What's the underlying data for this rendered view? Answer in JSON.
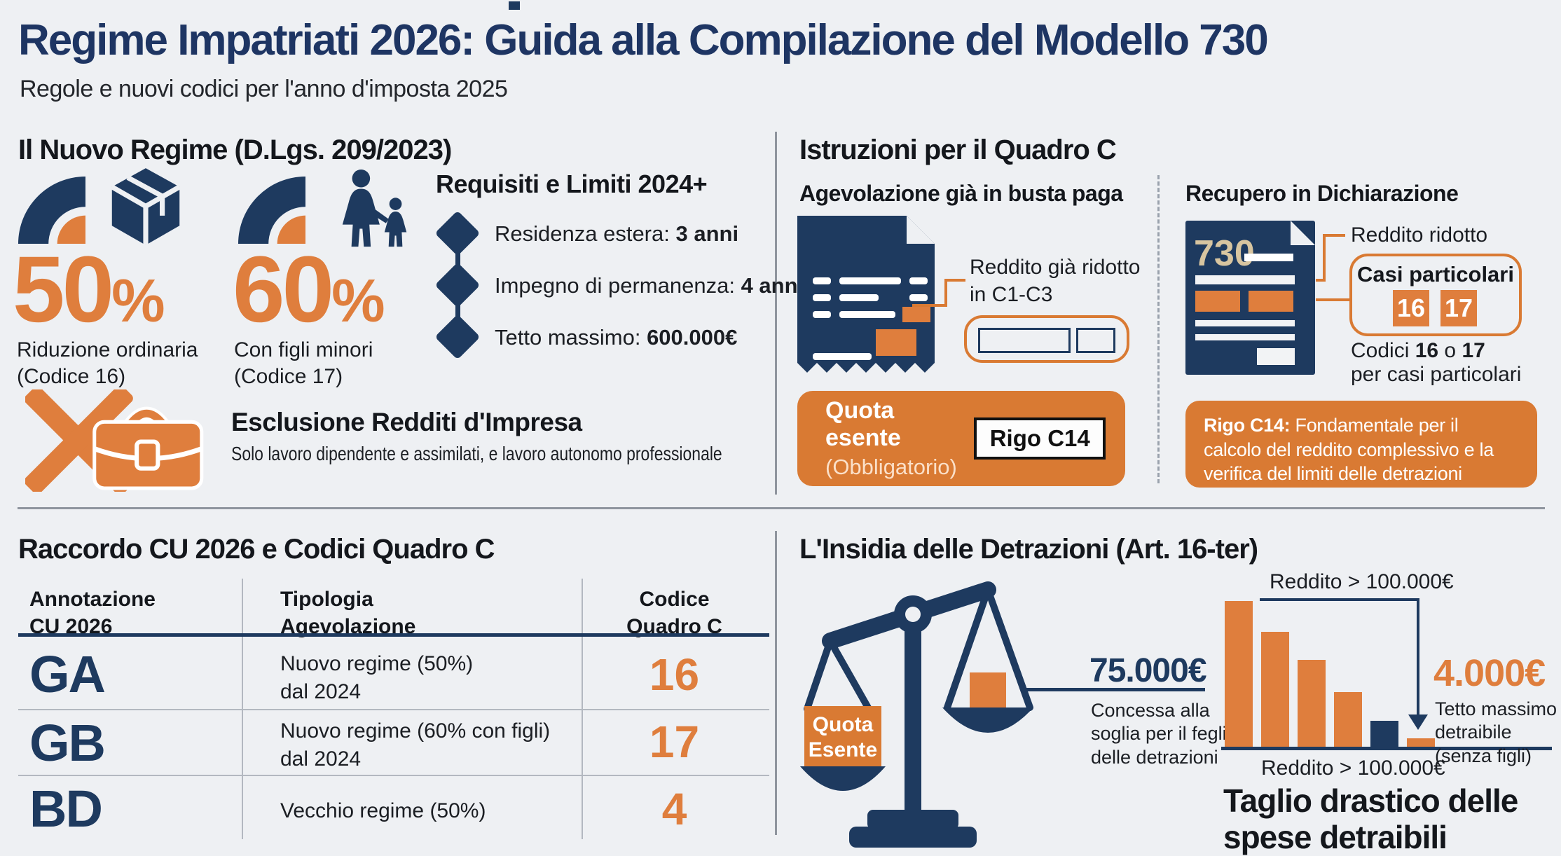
{
  "page": {
    "title": "Regime Impatriati 2026: Guida alla Compilazione del Modello 730",
    "subtitle": "Regole e nuovi codici per l'anno d'imposta 2025"
  },
  "colors": {
    "navy": "#1e3a5f",
    "orange": "#df7e3d",
    "background": "#eef0f3"
  },
  "nuovo_regime": {
    "title": "Il Nuovo Regime (D.Lgs. 209/2023)",
    "stat1": {
      "num": "50",
      "pct": "%",
      "label1": "Riduzione ordinaria",
      "label2": "(Codice 16)"
    },
    "stat2": {
      "num": "60",
      "pct": "%",
      "label1": "Con figli minori",
      "label2": "(Codice 17)"
    },
    "requisiti": {
      "title": "Requisiti e Limiti 2024+",
      "items": [
        {
          "label": "Residenza estera: ",
          "value": "3 anni"
        },
        {
          "label": "Impegno di permanenza: ",
          "value": "4 anni"
        },
        {
          "label": "Tetto massimo: ",
          "value": "600.000€"
        }
      ]
    },
    "esclusione": {
      "title": "Esclusione Redditi d'Impresa",
      "subtitle": "Solo lavoro dipendente e assimilati, e lavoro autonomo professionale"
    }
  },
  "quadro_c": {
    "title": "Istruzioni per il Quadro C",
    "busta": {
      "heading": "Agevolazione già in busta paga",
      "callout1": "Reddito già ridotto",
      "callout2": "in C1-C3",
      "quota_title": "Quota esente",
      "quota_sub": "(Obbligatorio)",
      "quota_tag": "Rigo C14"
    },
    "recupero": {
      "heading": "Recupero in Dichiarazione",
      "doc_label": "730",
      "callout": "Reddito ridotto",
      "casi_title": "Casi particolari",
      "code1": "16",
      "code2": "17",
      "caption_pre": "Codici ",
      "caption_b1": "16",
      "caption_mid": " o ",
      "caption_b2": "17",
      "caption_line2": "per casi particolari",
      "rigo_bold": "Rigo C14:",
      "rigo_text": " Fondamentale per il calcolo del reddito complessivo e la verifica del limiti delle detrazioni"
    }
  },
  "raccordo": {
    "title": "Raccordo CU 2026 e Codici Quadro C",
    "table": {
      "col1_h1": "Annotazione",
      "col1_h2": "CU 2026",
      "col2_h1": "Tipologia",
      "col2_h2": "Agevolazione",
      "col3_h1": "Codice",
      "col3_h2": "Quadro C",
      "rows": [
        {
          "ann": "GA",
          "tip1": "Nuovo regime (50%)",
          "tip2": "dal 2024",
          "code": "16"
        },
        {
          "ann": "GB",
          "tip1": "Nuovo regime (60% con figli)",
          "tip2": "dal 2024",
          "code": "17"
        },
        {
          "ann": "BD",
          "tip1": "Vecchio regime (50%)",
          "tip2": "",
          "code": "4"
        }
      ]
    }
  },
  "detrazioni": {
    "title": "L'Insidia delle Detrazioni (Art. 16-ter)",
    "scale": {
      "pan_label1": "Quota",
      "pan_label2": "Esente",
      "threshold": "75.000€",
      "caption1": "Concessa alla",
      "caption2": "soglia per il feglio",
      "caption3": "delle detrazioni"
    },
    "chart_top_label": "Reddito > 100.000€",
    "chart_bottom_label": "Reddito > 100.000€",
    "cap_value": "4.000€",
    "cap_caption1": "Tetto massimo",
    "cap_caption2": "detraibile",
    "cap_caption3": "(senza figli)",
    "footer1": "Taglio drastico delle",
    "footer2": "spese detraibili"
  },
  "chart_data": {
    "type": "bar",
    "title": "Taglio drastico delle spese detraibili",
    "description": "Declining deductible expense bars as income exceeds 100.000€; no numeric axis shown, heights relative",
    "categories": [
      "",
      "",
      "",
      "",
      "",
      ""
    ],
    "values_relative": [
      100,
      79,
      60,
      38,
      18,
      6
    ],
    "bar_colors": [
      "orange",
      "orange",
      "orange",
      "orange",
      "navy",
      "orange"
    ],
    "annotations": {
      "top": "Reddito > 100.000€",
      "bottom": "Reddito > 100.000€",
      "cap": "4.000€ Tetto massimo detraibile (senza figli)",
      "scale_threshold": "75.000€"
    },
    "grid": false,
    "legend": false
  }
}
